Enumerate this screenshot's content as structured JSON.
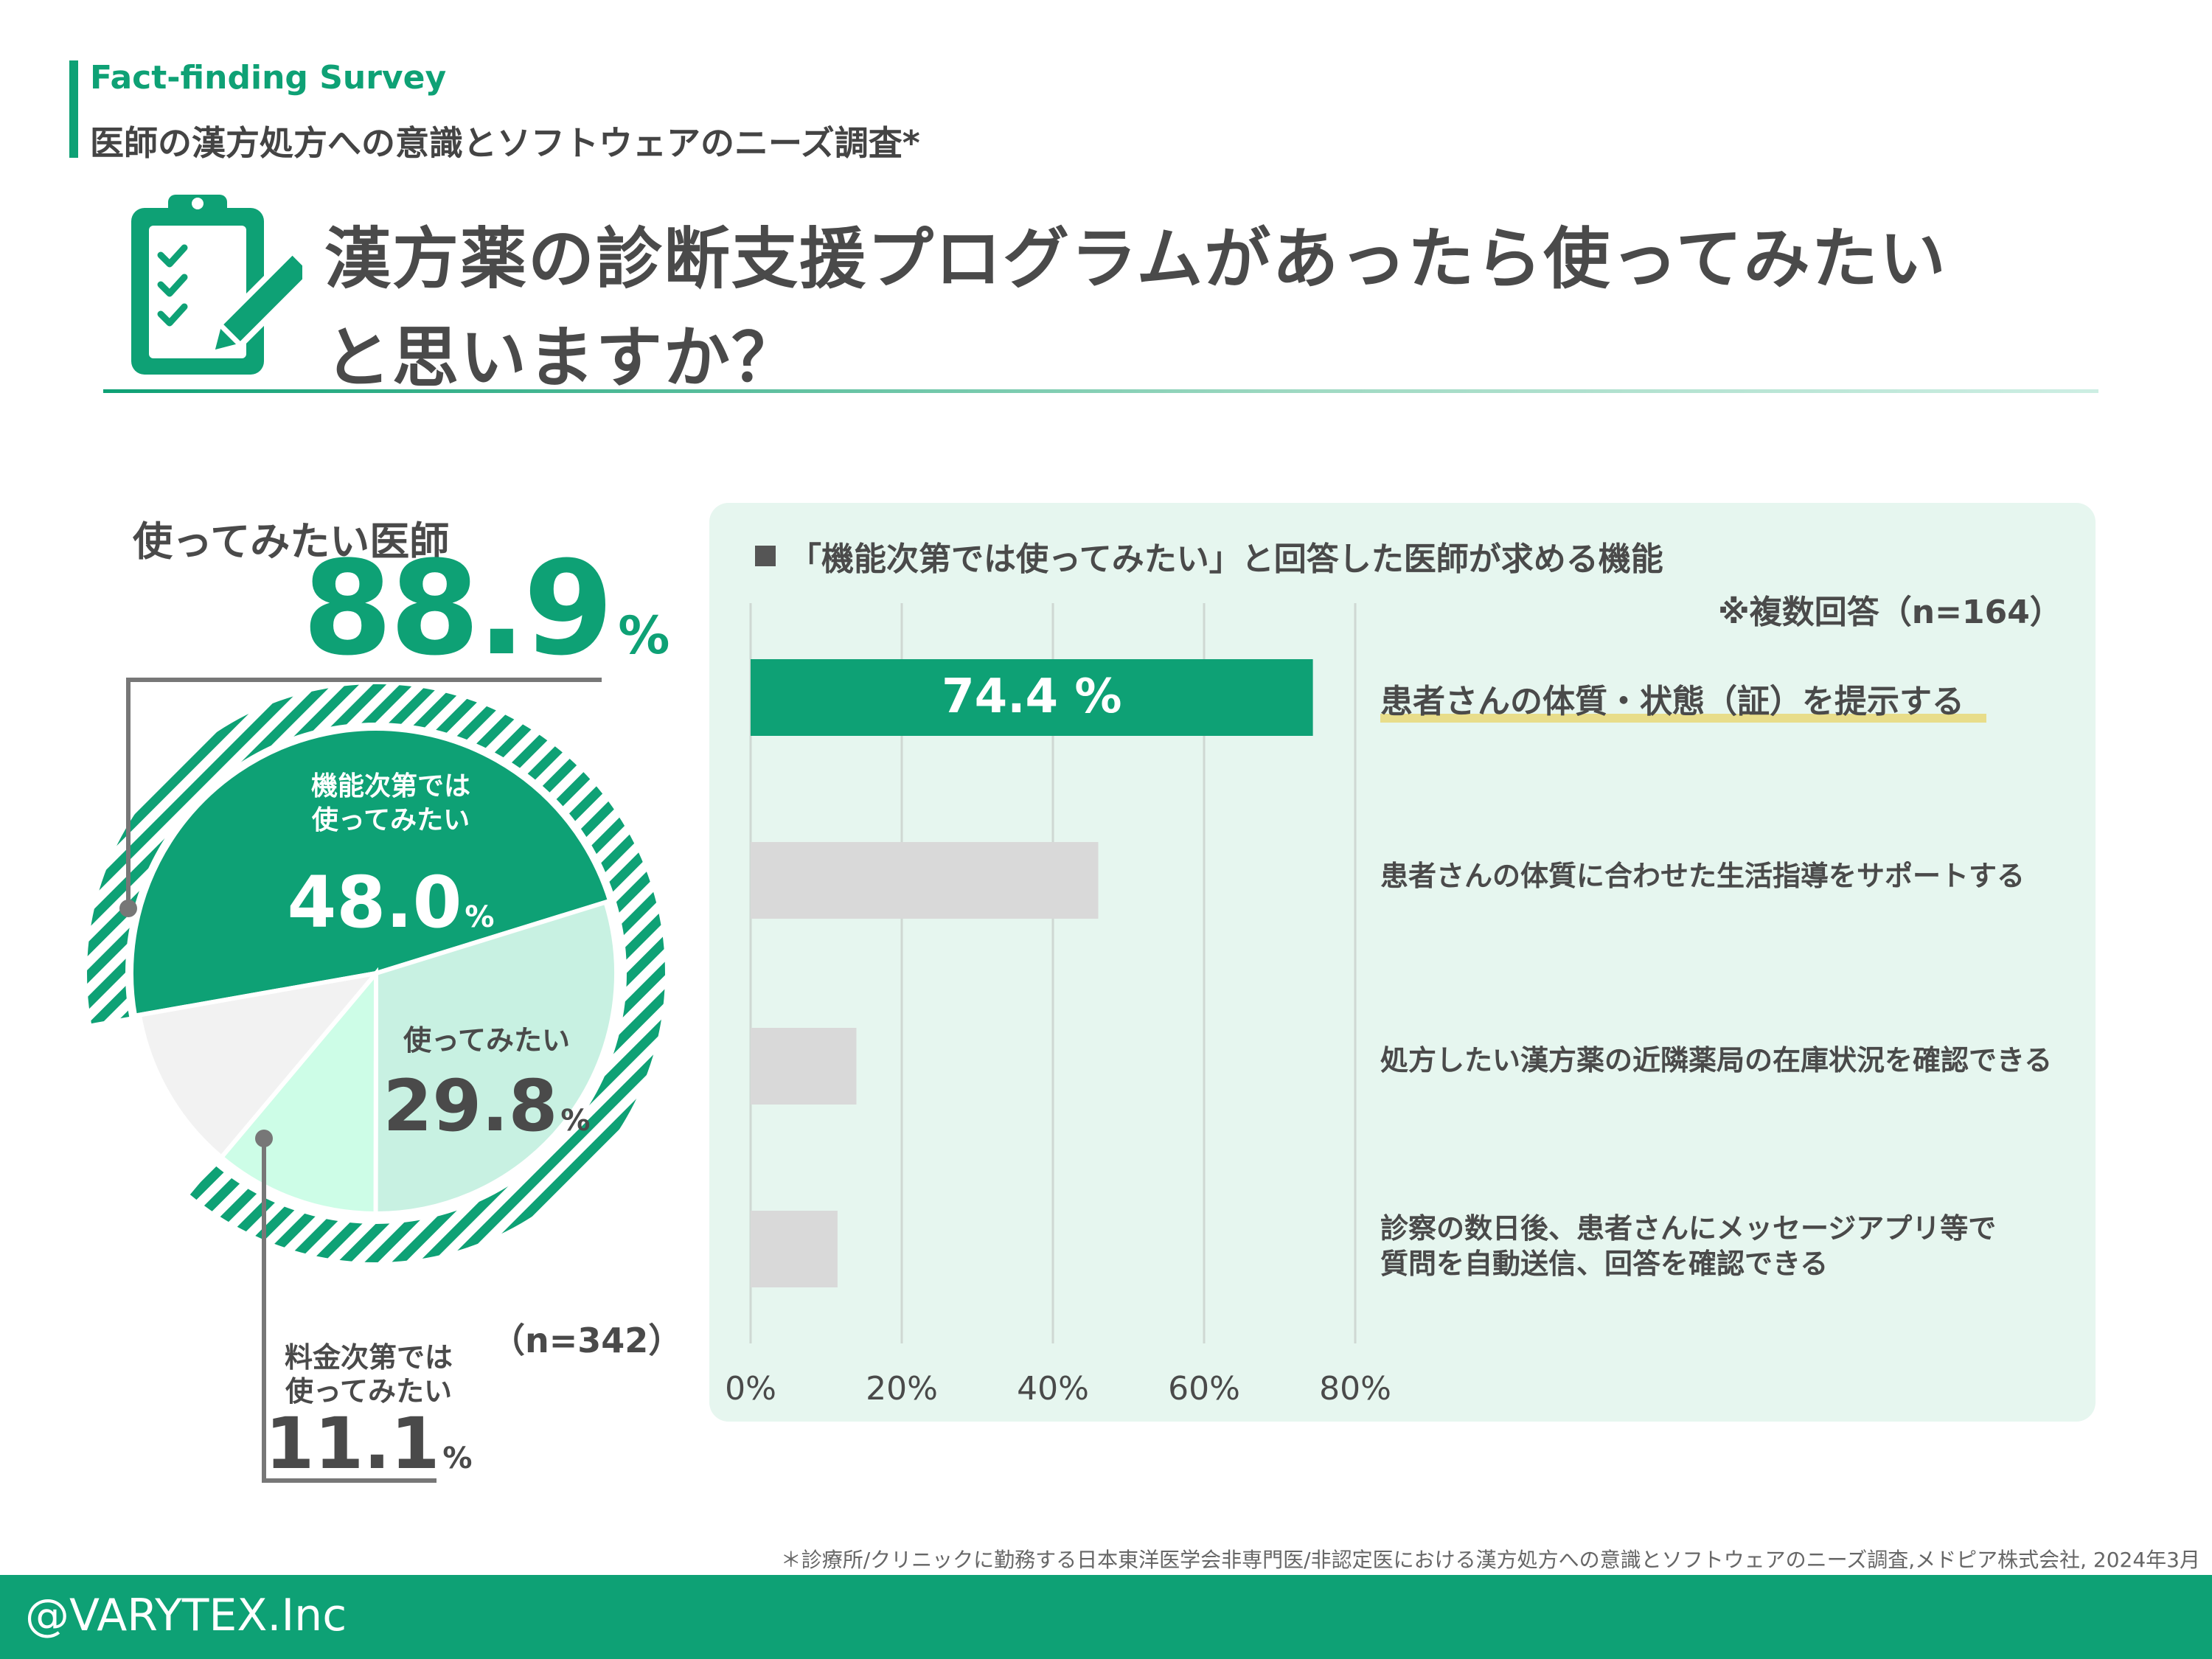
{
  "header": {
    "eyebrow": "Fact-finding Survey",
    "subtitle": "医師の漢方処方への意識とソフトウェアのニーズ調査*",
    "title_line1": "漢方薬の診断支援プログラムがあったら使ってみたい",
    "title_line2": "と思いますか？",
    "icon": "clipboard-checklist-icon"
  },
  "pie": {
    "headline_label": "使ってみたい医師",
    "headline_value": "88.9",
    "headline_unit": "%",
    "n_label": "（n=342）",
    "slices": [
      {
        "label_line1": "機能次第では",
        "label_line2": "使ってみたい",
        "value": "48.0",
        "unit": "%",
        "color": "#0ea175"
      },
      {
        "label_line1": "使ってみたい",
        "label_line2": "",
        "value": "29.8",
        "unit": "%",
        "color": "#c8f1e2"
      },
      {
        "label_line1": "料金次第では",
        "label_line2": "使ってみたい",
        "value": "11.1",
        "unit": "%",
        "color": "#cdfde7"
      },
      {
        "label_line1": "",
        "label_line2": "",
        "value": "11.1",
        "unit": "",
        "color": "#f2f2f2"
      }
    ]
  },
  "chart_data": [
    {
      "type": "pie",
      "title": "使ってみたい医師 88.9%",
      "categories": [
        "機能次第では使ってみたい",
        "使ってみたい",
        "料金次第では使ってみたい",
        ""
      ],
      "values": [
        48.0,
        29.8,
        11.1,
        11.1
      ],
      "annotations": [
        "（n=342）"
      ]
    },
    {
      "type": "bar",
      "orientation": "horizontal",
      "title": "「機能次第では使ってみたい」と回答した医師が求める機能",
      "note": "※複数回答（n=164）",
      "categories": [
        "患者さんの体質・状態（証）を提示する",
        "患者さんの体質に合わせた生活指導をサポートする",
        "処方したい漢方薬の近隣薬局の在庫状況を確認できる",
        "診察の数日後、患者さんにメッセージアプリ等で質問を自動送信、回答を確認できる"
      ],
      "category_lines": [
        [
          "患者さんの体質・状態（証）を提示する"
        ],
        [
          "患者さんの体質に合わせた生活指導をサポートする"
        ],
        [
          "処方したい漢方薬の近隣薬局の在庫状況を確認できる"
        ],
        [
          "診察の数日後、患者さんにメッセージアプリ等で",
          "質問を自動送信、回答を確認できる"
        ]
      ],
      "values": [
        74.4,
        46.0,
        14.0,
        11.5
      ],
      "data_labels": [
        "74.4 %",
        "",
        "",
        ""
      ],
      "colors": [
        "#0ea175",
        "#d9d9d9",
        "#d9d9d9",
        "#d9d9d9"
      ],
      "xlim": [
        0,
        80
      ],
      "ticks": [
        0,
        20,
        40,
        60,
        80
      ],
      "tick_labels": [
        "0%",
        "20%",
        "40%",
        "60%",
        "80%"
      ],
      "grid": true
    }
  ],
  "footnote": "＊診療所/クリニックに勤務する日本東洋医学会非専門医/非認定医における漢方処方への意識とソフトウェアのニーズ調査,メドピア株式会社, 2024年3月",
  "footer": {
    "text": "@VARYTEX.Inc",
    "color": "#0ea175"
  }
}
